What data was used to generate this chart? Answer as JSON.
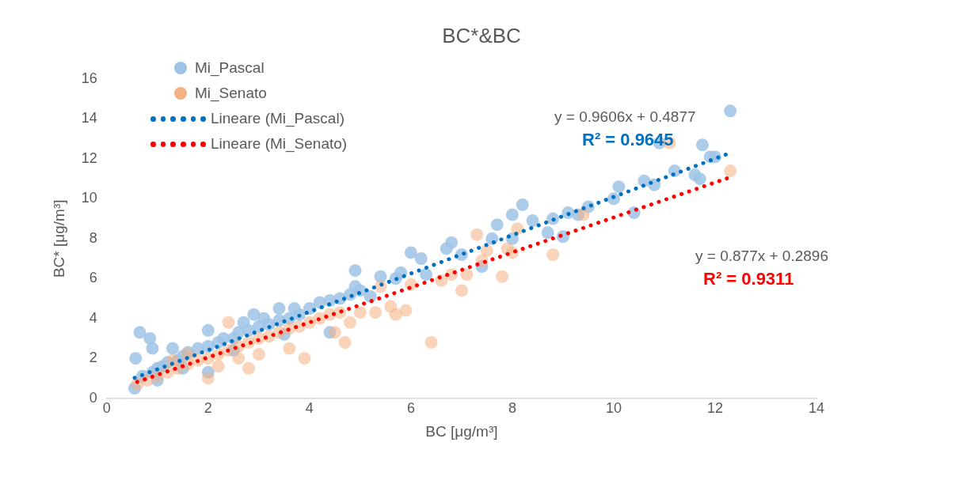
{
  "chart_data": {
    "type": "scatter",
    "title": "BC*&BC",
    "xlabel": "BC [μg/m³]",
    "ylabel": "BC* [μg/m³]",
    "xlim": [
      0,
      14
    ],
    "xticks": [
      0,
      2,
      4,
      6,
      8,
      10,
      12,
      14
    ],
    "ylim": [
      0,
      16
    ],
    "yticks": [
      0,
      2,
      4,
      6,
      8,
      10,
      12,
      14,
      16
    ],
    "grid": false,
    "legend": "top left",
    "marker": "circle",
    "annotations": [
      "y = 0.9606x + 0.4877",
      "R² = 0.9645",
      "y = 0.877x + 0.2896",
      "R² = 0.9311"
    ],
    "series": [
      {
        "name": "Mi_Pascal",
        "color": "#9dc3e6",
        "x": [
          0.55,
          0.57,
          0.65,
          0.85,
          0.9,
          1.3,
          2.0,
          2.0,
          2.9,
          3.4,
          3.7,
          4.4,
          4.9,
          4.9,
          5.4,
          5.7,
          5.8,
          6.0,
          6.2,
          6.3,
          6.7,
          6.8,
          7.0,
          7.4,
          7.6,
          7.7,
          8.0,
          8.2,
          8.0,
          8.4,
          8.7,
          8.8,
          9.0,
          9.1,
          9.3,
          9.5,
          10.0,
          10.1,
          10.4,
          10.6,
          10.8,
          10.9,
          11.2,
          11.6,
          11.7,
          11.75,
          11.9,
          12.0,
          12.3,
          0.7,
          0.9,
          1.0,
          1.1,
          1.2,
          1.4,
          1.5,
          1.6,
          1.8,
          2.0,
          2.2,
          2.3,
          2.5,
          2.6,
          2.7,
          2.8,
          3.0,
          3.1,
          3.2,
          3.4,
          3.6,
          3.8,
          4.0,
          4.2,
          4.4,
          4.6,
          4.8,
          5.0,
          5.2,
          1.0,
          1.5,
          2.5,
          3.5
        ],
        "values": [
          0.5,
          2.0,
          3.3,
          3.0,
          2.5,
          2.5,
          3.4,
          1.3,
          4.2,
          4.5,
          4.5,
          3.3,
          6.4,
          5.6,
          6.1,
          6.0,
          6.3,
          7.3,
          7.0,
          6.2,
          7.5,
          7.8,
          7.2,
          6.6,
          8.0,
          8.7,
          9.2,
          9.7,
          8.0,
          8.9,
          8.3,
          9.0,
          8.1,
          9.3,
          9.2,
          9.6,
          10.0,
          10.6,
          9.3,
          10.9,
          10.7,
          12.8,
          11.4,
          11.2,
          11.0,
          12.7,
          12.1,
          12.1,
          14.4,
          1.1,
          1.3,
          1.5,
          1.6,
          1.8,
          1.9,
          2.1,
          2.3,
          2.5,
          2.6,
          2.8,
          3.0,
          3.0,
          3.3,
          3.8,
          3.4,
          3.6,
          4.0,
          3.7,
          3.9,
          4.0,
          4.2,
          4.5,
          4.8,
          4.9,
          5.0,
          5.2,
          5.4,
          5.1,
          0.9,
          1.5,
          2.4,
          3.2
        ]
      },
      {
        "name": "Mi_Senato",
        "color": "#f4b183",
        "x": [
          0.6,
          0.8,
          1.0,
          1.2,
          1.4,
          1.6,
          1.8,
          2.0,
          2.2,
          2.4,
          2.6,
          2.8,
          3.0,
          3.2,
          3.4,
          3.6,
          3.8,
          4.0,
          4.2,
          4.4,
          4.6,
          2.0,
          2.4,
          2.8,
          3.0,
          3.6,
          3.9,
          4.5,
          4.7,
          4.8,
          5.0,
          5.3,
          5.4,
          5.6,
          5.7,
          5.9,
          6.0,
          6.4,
          6.6,
          6.8,
          7.0,
          7.1,
          7.3,
          7.4,
          7.5,
          7.8,
          7.9,
          8.0,
          8.1,
          8.8,
          9.4,
          11.1,
          12.3,
          1.3,
          1.6,
          2.2,
          2.6
        ],
        "values": [
          0.7,
          0.9,
          1.1,
          1.3,
          1.5,
          1.7,
          1.9,
          2.0,
          2.2,
          2.4,
          2.6,
          2.8,
          3.0,
          3.1,
          3.3,
          3.5,
          3.6,
          3.8,
          4.0,
          4.2,
          4.3,
          1.0,
          3.8,
          1.5,
          2.2,
          2.5,
          2.0,
          3.3,
          2.8,
          3.8,
          4.3,
          4.3,
          5.6,
          4.6,
          4.2,
          4.4,
          5.7,
          2.8,
          5.9,
          6.2,
          5.4,
          6.2,
          8.2,
          6.9,
          7.4,
          6.1,
          7.5,
          7.3,
          8.5,
          7.2,
          9.2,
          12.8,
          11.4,
          1.9,
          2.2,
          1.6,
          2.0
        ]
      },
      {
        "name": "Lineare (Mi_Pascal)",
        "type": "line",
        "line_style": "dotted",
        "marker": "none",
        "color": "#0070c0",
        "x": [
          0.55,
          12.3
        ],
        "values": [
          1.02,
          12.3
        ]
      },
      {
        "name": "Lineare (Mi_Senato)",
        "type": "line",
        "line_style": "dotted",
        "marker": "none",
        "color": "#ff0000",
        "x": [
          0.6,
          12.3
        ],
        "values": [
          0.82,
          11.08
        ]
      }
    ]
  }
}
